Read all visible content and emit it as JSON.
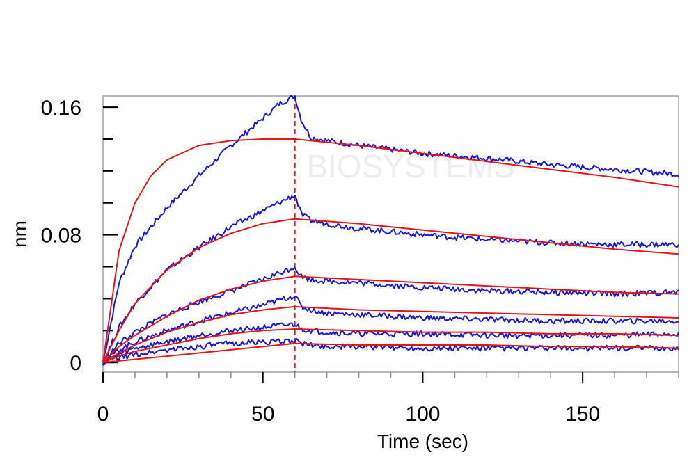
{
  "chart_data": {
    "type": "line",
    "xlabel": "Time (sec)",
    "ylabel": "nm",
    "xlim": [
      0,
      180
    ],
    "ylim": [
      -0.006,
      0.167
    ],
    "x_ticks": [
      0,
      50,
      100,
      150
    ],
    "x_tick_labels": [
      "0",
      "50",
      "100",
      "150"
    ],
    "y_ticks": [
      0,
      0.08,
      0.16
    ],
    "y_tick_labels": [
      "0",
      "0.08",
      "0.16"
    ],
    "vertical_marker_x": 60,
    "grid": false,
    "colors": {
      "measured": "#1515e6",
      "fit": "#e61515",
      "marker": "#e61515"
    },
    "watermark": "BIOSYSTEMS",
    "series": [
      {
        "kind": "measured",
        "x": [
          0,
          5,
          10,
          20,
          30,
          40,
          50,
          55,
          60,
          62,
          65,
          70,
          80,
          100,
          120,
          140,
          160,
          180
        ],
        "values": [
          0,
          0.05,
          0.073,
          0.097,
          0.117,
          0.136,
          0.153,
          0.162,
          0.167,
          0.152,
          0.141,
          0.139,
          0.136,
          0.131,
          0.128,
          0.124,
          0.121,
          0.118
        ]
      },
      {
        "kind": "fit",
        "x": [
          0,
          5,
          10,
          15,
          20,
          30,
          40,
          50,
          60,
          80,
          100,
          120,
          140,
          160,
          180
        ],
        "values": [
          0,
          0.07,
          0.1,
          0.117,
          0.127,
          0.136,
          0.139,
          0.14,
          0.14,
          0.136,
          0.131,
          0.126,
          0.121,
          0.116,
          0.11
        ]
      },
      {
        "kind": "measured",
        "x": [
          0,
          5,
          10,
          20,
          30,
          40,
          50,
          55,
          60,
          62,
          65,
          70,
          80,
          100,
          120,
          140,
          160,
          180
        ],
        "values": [
          0,
          0.022,
          0.037,
          0.058,
          0.072,
          0.085,
          0.095,
          0.1,
          0.105,
          0.093,
          0.089,
          0.087,
          0.084,
          0.08,
          0.077,
          0.075,
          0.074,
          0.074
        ]
      },
      {
        "kind": "fit",
        "x": [
          0,
          5,
          10,
          20,
          30,
          40,
          50,
          60,
          80,
          100,
          120,
          140,
          160,
          180
        ],
        "values": [
          0,
          0.02,
          0.037,
          0.058,
          0.072,
          0.081,
          0.087,
          0.09,
          0.087,
          0.083,
          0.079,
          0.075,
          0.071,
          0.068
        ]
      },
      {
        "kind": "measured",
        "x": [
          0,
          5,
          10,
          20,
          30,
          40,
          50,
          55,
          60,
          62,
          65,
          70,
          80,
          100,
          120,
          140,
          160,
          180
        ],
        "values": [
          0,
          0.012,
          0.019,
          0.03,
          0.038,
          0.045,
          0.052,
          0.056,
          0.06,
          0.054,
          0.052,
          0.051,
          0.05,
          0.047,
          0.045,
          0.044,
          0.043,
          0.044
        ]
      },
      {
        "kind": "fit",
        "x": [
          0,
          5,
          10,
          20,
          30,
          40,
          50,
          60,
          80,
          100,
          120,
          140,
          160,
          180
        ],
        "values": [
          0,
          0.01,
          0.017,
          0.029,
          0.039,
          0.046,
          0.051,
          0.054,
          0.052,
          0.05,
          0.048,
          0.046,
          0.044,
          0.043
        ]
      },
      {
        "kind": "measured",
        "x": [
          0,
          5,
          10,
          20,
          30,
          40,
          50,
          55,
          60,
          62,
          65,
          70,
          80,
          100,
          120,
          140,
          160,
          180
        ],
        "values": [
          0,
          0.008,
          0.013,
          0.02,
          0.026,
          0.031,
          0.036,
          0.039,
          0.042,
          0.035,
          0.033,
          0.031,
          0.03,
          0.028,
          0.027,
          0.026,
          0.026,
          0.026
        ]
      },
      {
        "kind": "fit",
        "x": [
          0,
          5,
          10,
          20,
          30,
          40,
          50,
          60,
          80,
          100,
          120,
          140,
          160,
          180
        ],
        "values": [
          0,
          0.006,
          0.011,
          0.019,
          0.025,
          0.03,
          0.033,
          0.035,
          0.033,
          0.032,
          0.031,
          0.03,
          0.029,
          0.028
        ]
      },
      {
        "kind": "measured",
        "x": [
          0,
          5,
          10,
          20,
          30,
          40,
          50,
          55,
          60,
          62,
          65,
          70,
          80,
          100,
          120,
          140,
          160,
          180
        ],
        "values": [
          0,
          0.005,
          0.009,
          0.013,
          0.017,
          0.02,
          0.022,
          0.023,
          0.024,
          0.021,
          0.02,
          0.019,
          0.018,
          0.018,
          0.017,
          0.017,
          0.017,
          0.018
        ]
      },
      {
        "kind": "fit",
        "x": [
          0,
          5,
          10,
          20,
          30,
          40,
          50,
          60,
          80,
          100,
          120,
          140,
          160,
          180
        ],
        "values": [
          0,
          0.004,
          0.007,
          0.011,
          0.015,
          0.018,
          0.02,
          0.021,
          0.02,
          0.019,
          0.019,
          0.018,
          0.018,
          0.017
        ]
      },
      {
        "kind": "measured",
        "x": [
          0,
          5,
          10,
          20,
          30,
          40,
          50,
          55,
          60,
          62,
          65,
          70,
          80,
          100,
          120,
          140,
          160,
          180
        ],
        "values": [
          0,
          0.003,
          0.005,
          0.008,
          0.01,
          0.012,
          0.013,
          0.013,
          0.014,
          0.012,
          0.011,
          0.01,
          0.01,
          0.009,
          0.009,
          0.009,
          0.009,
          0.009
        ]
      },
      {
        "kind": "fit",
        "x": [
          0,
          5,
          10,
          20,
          30,
          40,
          50,
          60,
          80,
          100,
          120,
          140,
          160,
          180
        ],
        "values": [
          0,
          0.001,
          0.002,
          0.004,
          0.006,
          0.008,
          0.01,
          0.012,
          0.011,
          0.011,
          0.011,
          0.01,
          0.01,
          0.009
        ]
      }
    ]
  }
}
